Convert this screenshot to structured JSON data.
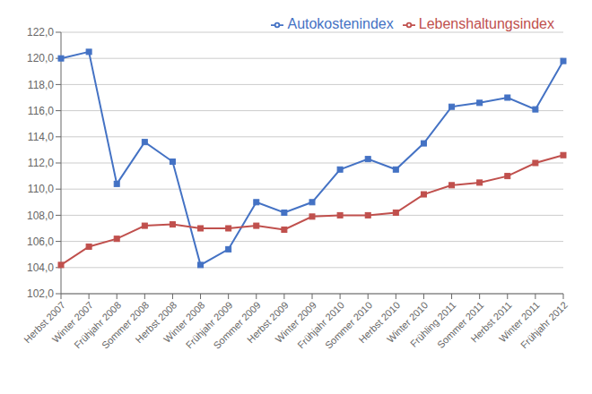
{
  "chart_data": {
    "type": "line",
    "categories": [
      "Herbst 2007",
      "Winter 2007",
      "Frühjahr 2008",
      "Sommer 2008",
      "Herbst 2008",
      "Winter 2008",
      "Frühjahr 2009",
      "Sommer 2009",
      "Herbst 2009",
      "Winter 2009",
      "Frühjahr 2010",
      "Sommer 2010",
      "Herbst 2010",
      "Winter 2010",
      "Frühling 2011",
      "Sommer 2011",
      "Herbst 2011",
      "Winter 2011",
      "Frühjahr 2012"
    ],
    "series": [
      {
        "name": "Autokostenindex",
        "color": "#4472C4",
        "marker": "square",
        "values": [
          120.0,
          120.5,
          110.4,
          113.6,
          112.1,
          104.2,
          105.4,
          109.0,
          108.2,
          109.0,
          111.5,
          112.3,
          111.5,
          113.5,
          116.3,
          116.6,
          117.0,
          116.1,
          119.8
        ]
      },
      {
        "name": "Lebenshaltungsindex",
        "color": "#C0504D",
        "marker": "square",
        "values": [
          104.2,
          105.6,
          106.2,
          107.2,
          107.3,
          107.0,
          107.0,
          107.2,
          106.9,
          107.9,
          108.0,
          108.0,
          108.2,
          109.6,
          110.3,
          110.5,
          111.0,
          112.0,
          112.6
        ]
      }
    ],
    "ylim": [
      102,
      122
    ],
    "yticks": [
      {
        "value": 102,
        "label": "102,0"
      },
      {
        "value": 104,
        "label": "104,0"
      },
      {
        "value": 106,
        "label": "106,0"
      },
      {
        "value": 108,
        "label": "108,0"
      },
      {
        "value": 110,
        "label": "110,0"
      },
      {
        "value": 112,
        "label": "112,0"
      },
      {
        "value": 114,
        "label": "114,0"
      },
      {
        "value": 116,
        "label": "116,0"
      },
      {
        "value": 118,
        "label": "118,0"
      },
      {
        "value": 120,
        "label": "120,0"
      },
      {
        "value": 122,
        "label": "122,0"
      }
    ],
    "grid": true,
    "legend": "upper right"
  }
}
